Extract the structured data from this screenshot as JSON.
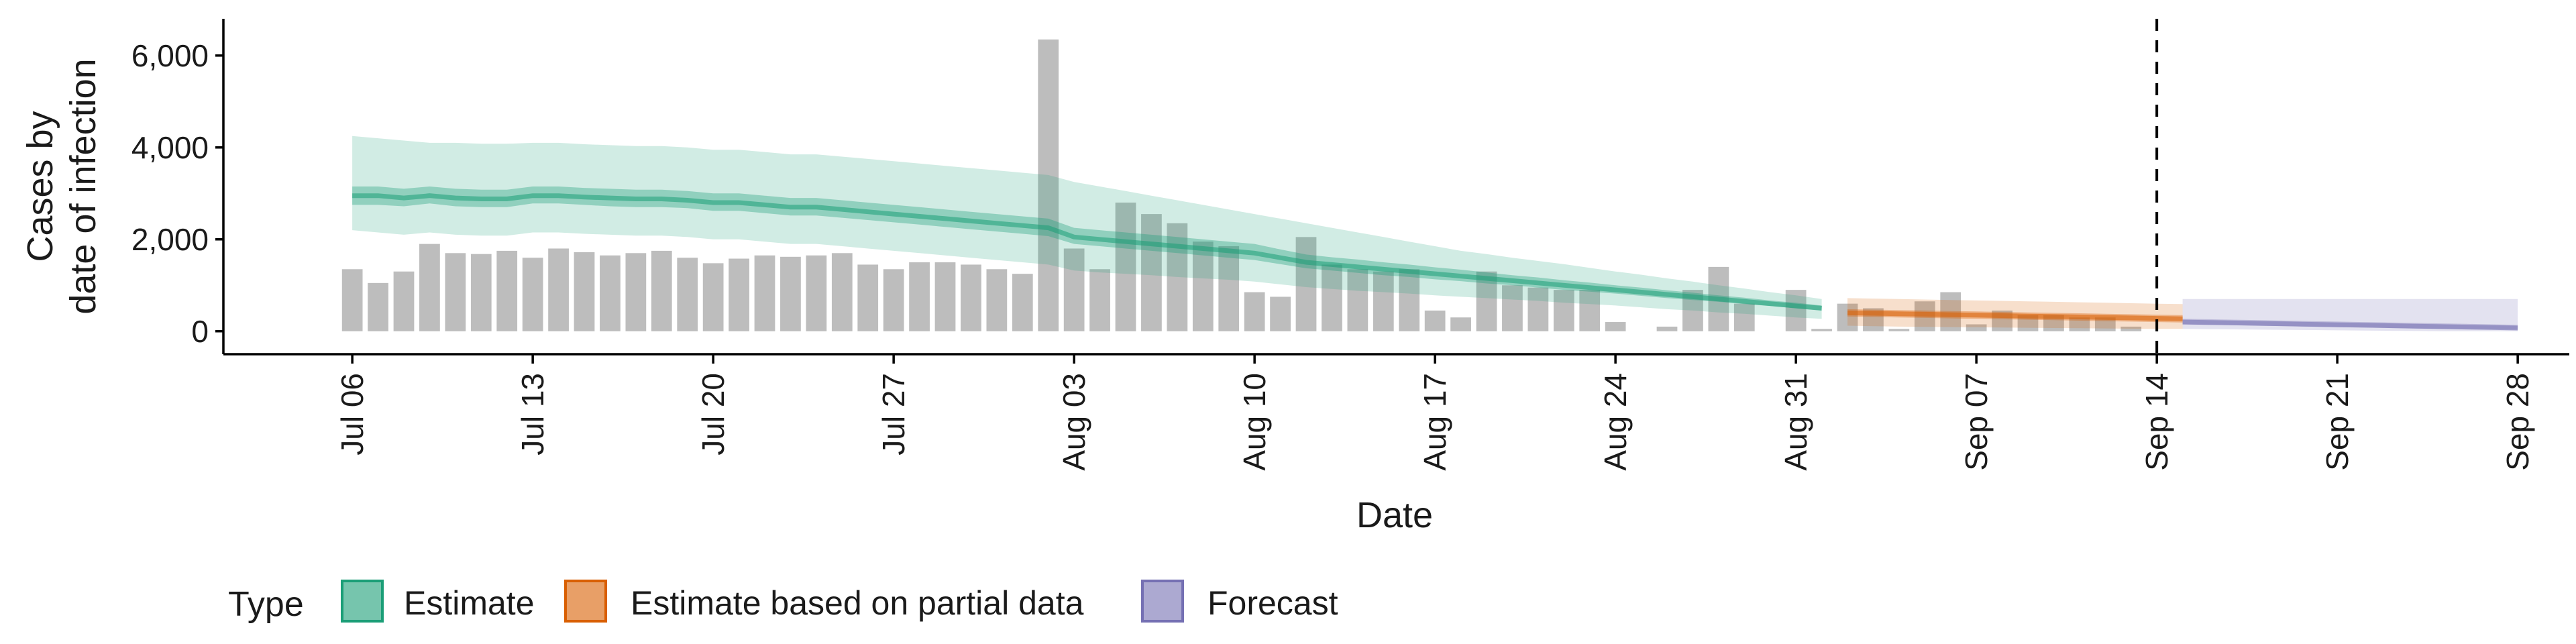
{
  "chart_data": {
    "type": "bar",
    "xlabel": "Date",
    "ylabel_lines": [
      "Cases by",
      "date of infection"
    ],
    "x_range": [
      "2020-07-01",
      "2020-09-30"
    ],
    "ylim": [
      -500,
      6800
    ],
    "y_ticks": [
      0,
      2000,
      4000,
      6000
    ],
    "y_tick_labels": [
      "0",
      "2,000",
      "4,000",
      "6,000"
    ],
    "x_ticks": [
      "2020-07-06",
      "2020-07-13",
      "2020-07-20",
      "2020-07-27",
      "2020-08-03",
      "2020-08-10",
      "2020-08-17",
      "2020-08-24",
      "2020-08-31",
      "2020-09-07",
      "2020-09-14",
      "2020-09-21",
      "2020-09-28"
    ],
    "x_tick_labels": [
      "Jul 06",
      "Jul 13",
      "Jul 20",
      "Jul 27",
      "Aug 03",
      "Aug 10",
      "Aug 17",
      "Aug 24",
      "Aug 31",
      "Sep 07",
      "Sep 14",
      "Sep 21",
      "Sep 28"
    ],
    "grid": false,
    "reference_line": "2020-09-14",
    "bars": {
      "start": "2020-07-06",
      "color": "#bdbdbd",
      "values": [
        1350,
        1050,
        1300,
        1900,
        1700,
        1680,
        1750,
        1600,
        1800,
        1720,
        1650,
        1700,
        1750,
        1600,
        1480,
        1580,
        1650,
        1620,
        1650,
        1700,
        1450,
        1350,
        1500,
        1500,
        1450,
        1350,
        1250,
        6350,
        1800,
        1350,
        2800,
        2550,
        2350,
        1950,
        1850,
        850,
        750,
        2050,
        1450,
        1350,
        1300,
        1350,
        450,
        300,
        1300,
        1000,
        950,
        900,
        900,
        200,
        0,
        100,
        900,
        1400,
        600,
        0,
        900,
        50,
        600,
        500,
        50,
        650,
        850,
        150,
        450,
        350,
        350,
        300,
        300,
        100
      ]
    },
    "series": [
      {
        "name": "Estimate",
        "color": "#1b9e77",
        "start": "2020-07-06",
        "median": [
          2950,
          2950,
          2900,
          2950,
          2900,
          2880,
          2880,
          2950,
          2950,
          2920,
          2900,
          2880,
          2880,
          2850,
          2800,
          2800,
          2750,
          2700,
          2700,
          2650,
          2600,
          2550,
          2500,
          2450,
          2400,
          2350,
          2300,
          2250,
          2050,
          2000,
          1950,
          1900,
          1850,
          1800,
          1750,
          1700,
          1600,
          1500,
          1450,
          1400,
          1350,
          1300,
          1250,
          1200,
          1150,
          1100,
          1050,
          1000,
          950,
          900,
          850,
          800,
          750,
          700,
          650,
          600,
          550,
          500
        ],
        "lower50": [
          2750,
          2750,
          2720,
          2780,
          2720,
          2700,
          2700,
          2780,
          2780,
          2750,
          2720,
          2700,
          2700,
          2680,
          2620,
          2620,
          2570,
          2520,
          2520,
          2470,
          2420,
          2370,
          2320,
          2270,
          2220,
          2170,
          2120,
          2070,
          1900,
          1850,
          1800,
          1750,
          1700,
          1650,
          1600,
          1550,
          1460,
          1370,
          1320,
          1270,
          1220,
          1180,
          1130,
          1090,
          1040,
          1000,
          950,
          900,
          860,
          820,
          770,
          720,
          680,
          640,
          590,
          550,
          500,
          450
        ],
        "upper50": [
          3150,
          3150,
          3100,
          3150,
          3100,
          3080,
          3080,
          3150,
          3150,
          3120,
          3100,
          3080,
          3080,
          3050,
          3000,
          3000,
          2950,
          2900,
          2900,
          2850,
          2800,
          2750,
          2700,
          2650,
          2600,
          2550,
          2500,
          2450,
          2250,
          2200,
          2150,
          2100,
          2050,
          2000,
          1950,
          1900,
          1780,
          1670,
          1610,
          1560,
          1500,
          1450,
          1390,
          1340,
          1280,
          1220,
          1170,
          1110,
          1060,
          1000,
          950,
          890,
          840,
          780,
          730,
          670,
          620,
          560
        ],
        "lower90": [
          2200,
          2150,
          2100,
          2150,
          2100,
          2080,
          2080,
          2150,
          2150,
          2120,
          2100,
          2080,
          2080,
          2050,
          2000,
          2000,
          1950,
          1900,
          1900,
          1850,
          1800,
          1750,
          1700,
          1650,
          1600,
          1550,
          1500,
          1450,
          1320,
          1280,
          1250,
          1220,
          1180,
          1150,
          1120,
          1080,
          1020,
          960,
          920,
          880,
          850,
          820,
          780,
          750,
          720,
          690,
          660,
          620,
          590,
          560,
          520,
          480,
          450,
          410,
          380,
          340,
          300,
          270
        ],
        "upper90": [
          4250,
          4200,
          4150,
          4100,
          4100,
          4080,
          4080,
          4100,
          4100,
          4070,
          4050,
          4030,
          4030,
          4000,
          3950,
          3950,
          3900,
          3850,
          3850,
          3800,
          3750,
          3700,
          3650,
          3600,
          3550,
          3500,
          3450,
          3400,
          3250,
          3150,
          3050,
          2950,
          2850,
          2750,
          2650,
          2550,
          2450,
          2350,
          2250,
          2150,
          2050,
          1950,
          1850,
          1750,
          1680,
          1600,
          1530,
          1460,
          1380,
          1300,
          1230,
          1150,
          1080,
          1000,
          930,
          850,
          780,
          700
        ]
      },
      {
        "name": "Estimate based on partial data",
        "color": "#d95f02",
        "start": "2020-09-02",
        "median": [
          400,
          390,
          380,
          370,
          360,
          350,
          340,
          330,
          320,
          310,
          300,
          290,
          280,
          270
        ],
        "lower50": [
          320,
          310,
          300,
          290,
          280,
          270,
          260,
          250,
          240,
          230,
          220,
          210,
          200,
          190
        ],
        "upper50": [
          480,
          470,
          460,
          450,
          440,
          430,
          420,
          410,
          400,
          390,
          380,
          370,
          360,
          350
        ],
        "lower90": [
          120,
          110,
          100,
          95,
          90,
          85,
          80,
          75,
          70,
          65,
          60,
          55,
          50,
          50
        ],
        "upper90": [
          720,
          710,
          700,
          690,
          680,
          670,
          660,
          650,
          640,
          630,
          620,
          610,
          600,
          590
        ]
      },
      {
        "name": "Forecast",
        "color": "#7570b3",
        "start": "2020-09-15",
        "median": [
          200,
          190,
          180,
          170,
          160,
          150,
          140,
          130,
          120,
          110,
          100,
          90,
          80,
          70
        ],
        "lower50": [
          150,
          140,
          130,
          120,
          110,
          100,
          90,
          80,
          70,
          60,
          50,
          45,
          40,
          35
        ],
        "upper50": [
          270,
          260,
          250,
          240,
          230,
          220,
          210,
          200,
          190,
          180,
          170,
          160,
          150,
          140
        ],
        "lower90": [
          50,
          45,
          40,
          35,
          30,
          25,
          20,
          15,
          10,
          5,
          0,
          0,
          0,
          0
        ],
        "upper90": [
          700,
          700,
          700,
          700,
          700,
          700,
          700,
          700,
          700,
          700,
          700,
          700,
          700,
          700
        ]
      }
    ],
    "legend": {
      "title": "Type",
      "position": "bottom",
      "entries": [
        "Estimate",
        "Estimate based on partial data",
        "Forecast"
      ]
    }
  }
}
